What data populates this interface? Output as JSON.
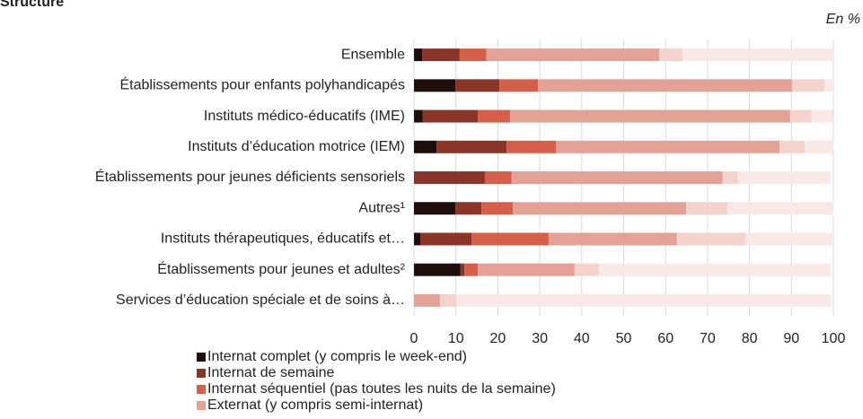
{
  "chart_data": {
    "type": "stacked-barh",
    "title": "Structure",
    "subtitle": "En %",
    "categories": [
      "Ensemble",
      "Établissements pour enfants polyhandicapés",
      "Instituts médico-éducatifs (IME)",
      "Instituts d’éducation motrice (IEM)",
      "Établissements pour jeunes déficients sensoriels",
      "Autres¹",
      "Instituts thérapeutiques, éducatifs et…",
      "Établissements pour jeunes et adultes²",
      "Services d’éducation spéciale et de soins à…"
    ],
    "series": [
      {
        "name": "Internat complet (y compris le week-end)",
        "color": "#1f0e0b",
        "values": [
          2,
          9.9,
          2.1,
          5.4,
          0,
          9.9,
          1.5,
          11.1,
          0
        ]
      },
      {
        "name": "Internat de semaine",
        "color": "#8b3428",
        "values": [
          8.9,
          10.5,
          13.1,
          16.7,
          16.9,
          6.2,
          12.2,
          0.9,
          0
        ]
      },
      {
        "name": "Internat séquentiel (pas toutes les nuits de la semaine)",
        "color": "#d65f4a",
        "values": [
          6.4,
          9.2,
          7.7,
          11.8,
          6.4,
          7.5,
          18.4,
          3.2,
          0
        ]
      },
      {
        "name": "Externat (y compris semi-internat)",
        "color": "#e4a196",
        "values": [
          41.2,
          60.6,
          66.8,
          53.3,
          50.3,
          41.3,
          30.6,
          23.1,
          6.2
        ]
      },
      {
        "color": "#f3d3cc",
        "values": [
          5.5,
          7.7,
          5.1,
          6.0,
          3.6,
          9.9,
          16.3,
          5.8,
          3.9
        ]
      },
      {
        "color": "#f9e9e6",
        "values": [
          36,
          2.1,
          5.1,
          6.9,
          22.1,
          25.3,
          21.0,
          55.2,
          89.3
        ]
      }
    ],
    "xlim": [
      0,
      100
    ],
    "xticks": [
      0,
      10,
      20,
      30,
      40,
      50,
      60,
      70,
      80,
      90,
      100
    ],
    "grid": true
  }
}
